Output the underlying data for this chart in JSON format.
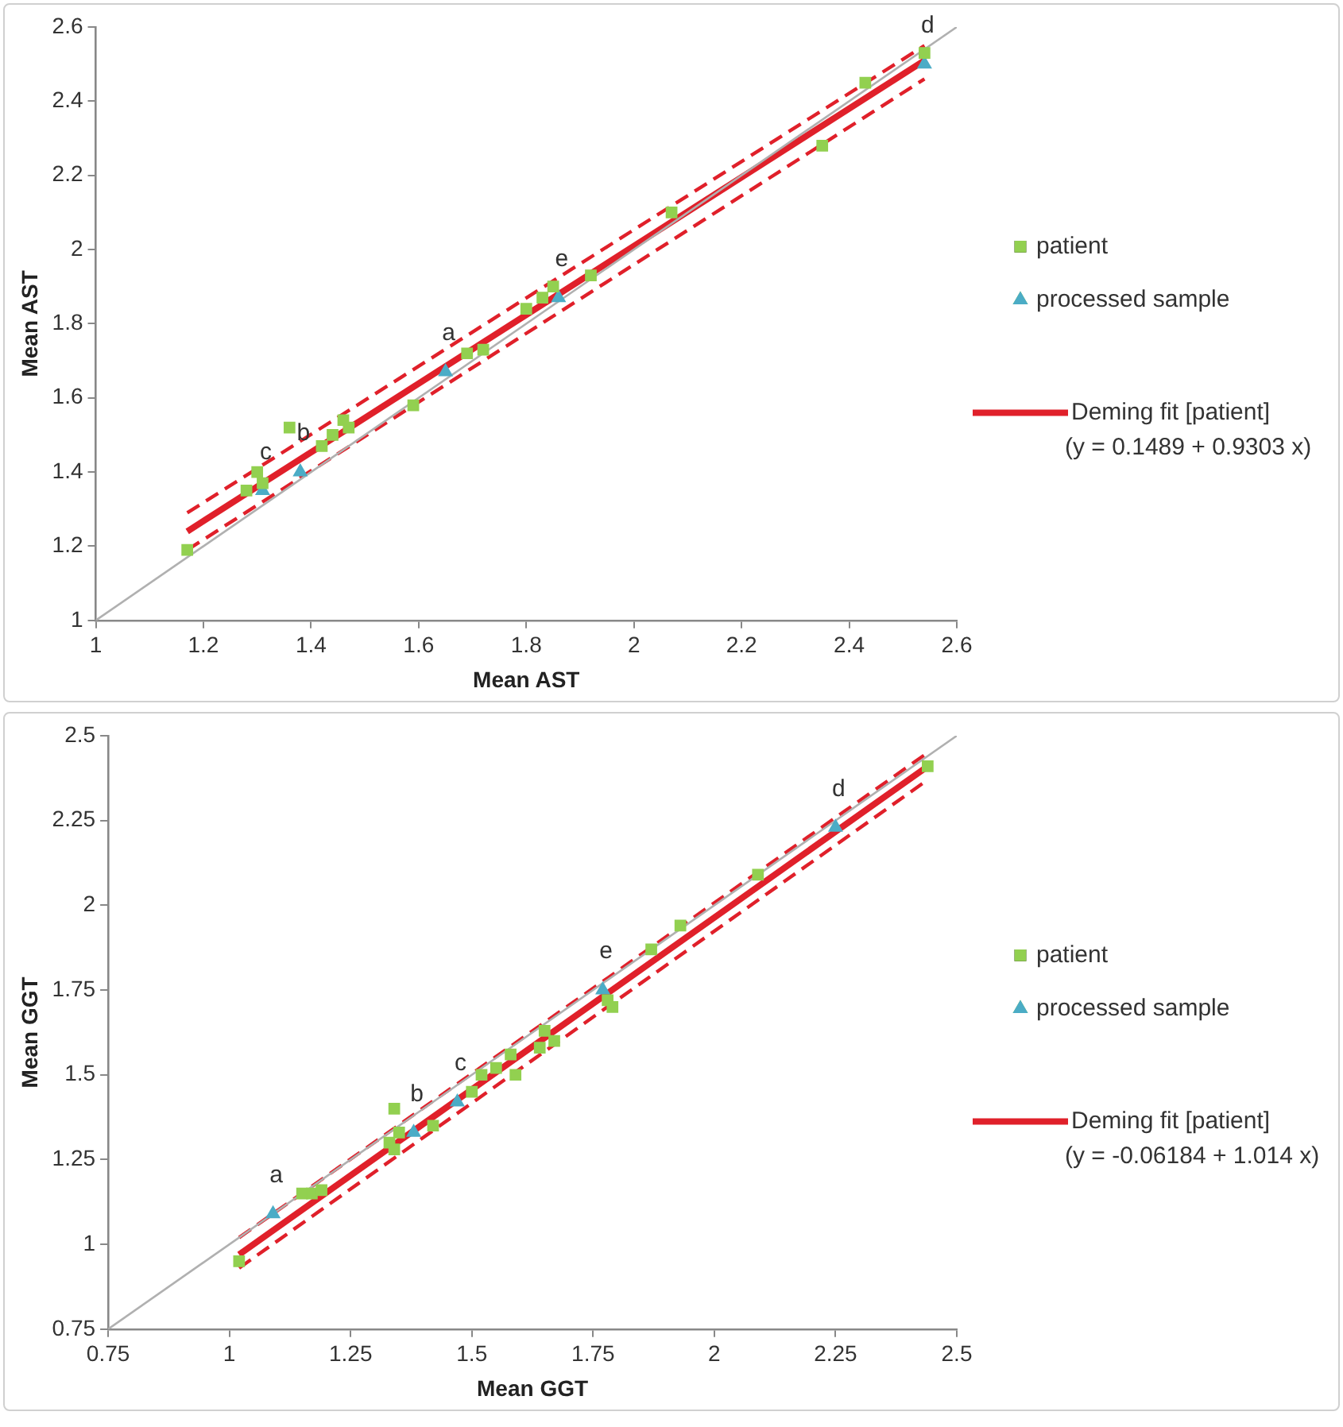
{
  "chart_data": [
    {
      "type": "scatter",
      "xlabel": "Mean AST",
      "ylabel": "Mean AST",
      "xlim": [
        1,
        2.6
      ],
      "xticks": [
        1,
        1.2,
        1.4,
        1.6,
        1.8,
        2,
        2.2,
        2.4,
        2.6
      ],
      "ylim": [
        1,
        2.6
      ],
      "yticks": [
        1,
        1.2,
        1.4,
        1.6,
        1.8,
        2,
        2.2,
        2.4,
        2.6
      ],
      "grid": false,
      "legend": "right",
      "annotations": [
        {
          "text": "a",
          "x": 1.65,
          "y": 1.67
        },
        {
          "text": "b",
          "x": 1.38,
          "y": 1.4
        },
        {
          "text": "c",
          "x": 1.31,
          "y": 1.35
        },
        {
          "text": "d",
          "x": 2.54,
          "y": 2.5
        },
        {
          "text": "e",
          "x": 1.86,
          "y": 1.87
        },
        "(y = 0.1489 + 0.9303 x)"
      ],
      "series": [
        {
          "type": "line",
          "color": "#b0b0b0",
          "x": [
            1,
            2.6
          ],
          "values": [
            1,
            2.6
          ],
          "marker": "none",
          "line_style": "solid"
        },
        {
          "type": "line",
          "color": "#e0202a",
          "x": [
            1.17,
            2.54
          ],
          "values": [
            1.29,
            2.55
          ],
          "marker": "none",
          "line_style": "dashed"
        },
        {
          "type": "line",
          "color": "#e0202a",
          "x": [
            1.17,
            2.54
          ],
          "values": [
            1.19,
            2.46
          ],
          "marker": "none",
          "line_style": "dashed"
        },
        {
          "type": "scatter",
          "name": "patient",
          "color": "#92d050",
          "marker": "square",
          "x": [
            1.17,
            1.28,
            1.3,
            1.31,
            1.36,
            1.42,
            1.44,
            1.46,
            1.47,
            1.59,
            1.69,
            1.72,
            1.8,
            1.83,
            1.85,
            1.92,
            2.07,
            2.35,
            2.43,
            2.54
          ],
          "values": [
            1.19,
            1.35,
            1.4,
            1.37,
            1.52,
            1.47,
            1.5,
            1.54,
            1.52,
            1.58,
            1.72,
            1.73,
            1.84,
            1.87,
            1.9,
            1.93,
            2.1,
            2.28,
            2.45,
            2.53
          ]
        },
        {
          "type": "scatter",
          "name": "processed sample",
          "color": "#4bacc6",
          "marker": "triangle",
          "x": [
            1.31,
            1.38,
            1.65,
            1.86,
            2.54
          ],
          "values": [
            1.35,
            1.4,
            1.67,
            1.87,
            2.5
          ]
        },
        {
          "type": "line",
          "name": "Deming fit [patient]",
          "color": "#e0202a",
          "x": [
            1.17,
            2.54
          ],
          "values": [
            1.24,
            2.51
          ],
          "marker": "none",
          "line_style": "solid"
        }
      ]
    },
    {
      "type": "scatter",
      "xlabel": "Mean GGT",
      "ylabel": "Mean GGT",
      "xlim": [
        0.75,
        2.5
      ],
      "xticks": [
        0.75,
        1,
        1.25,
        1.5,
        1.75,
        2,
        2.25,
        2.5
      ],
      "ylim": [
        0.75,
        2.5
      ],
      "yticks": [
        0.75,
        1,
        1.25,
        1.5,
        1.75,
        2,
        2.25,
        2.5
      ],
      "grid": false,
      "legend": "right",
      "annotations": [
        {
          "text": "a",
          "x": 1.09,
          "y": 1.09
        },
        {
          "text": "b",
          "x": 1.38,
          "y": 1.33
        },
        {
          "text": "c",
          "x": 1.47,
          "y": 1.42
        },
        {
          "text": "d",
          "x": 2.25,
          "y": 2.23
        },
        {
          "text": "e",
          "x": 1.77,
          "y": 1.75
        },
        "(y = -0.06184 + 1.014 x)"
      ],
      "series": [
        {
          "type": "line",
          "color": "#b0b0b0",
          "x": [
            0.75,
            2.5
          ],
          "values": [
            0.75,
            2.5
          ],
          "marker": "none",
          "line_style": "solid"
        },
        {
          "type": "line",
          "color": "#e0202a",
          "x": [
            1.02,
            2.44
          ],
          "values": [
            1.02,
            2.45
          ],
          "marker": "none",
          "line_style": "dashed"
        },
        {
          "type": "line",
          "color": "#e0202a",
          "x": [
            1.02,
            2.44
          ],
          "values": [
            0.93,
            2.37
          ],
          "marker": "none",
          "line_style": "dashed"
        },
        {
          "type": "scatter",
          "name": "patient",
          "color": "#92d050",
          "marker": "square",
          "x": [
            1.02,
            1.15,
            1.17,
            1.19,
            1.33,
            1.34,
            1.34,
            1.35,
            1.42,
            1.5,
            1.52,
            1.55,
            1.58,
            1.59,
            1.64,
            1.65,
            1.67,
            1.78,
            1.79,
            1.87,
            1.93,
            2.09,
            2.44
          ],
          "values": [
            0.95,
            1.15,
            1.15,
            1.16,
            1.3,
            1.4,
            1.28,
            1.33,
            1.35,
            1.45,
            1.5,
            1.52,
            1.56,
            1.5,
            1.58,
            1.63,
            1.6,
            1.72,
            1.7,
            1.87,
            1.94,
            2.09,
            2.41
          ]
        },
        {
          "type": "scatter",
          "name": "processed sample",
          "color": "#4bacc6",
          "marker": "triangle",
          "x": [
            1.09,
            1.38,
            1.47,
            1.77,
            2.25
          ],
          "values": [
            1.09,
            1.33,
            1.42,
            1.75,
            2.23
          ]
        },
        {
          "type": "line",
          "name": "Deming fit [patient]",
          "color": "#e0202a",
          "x": [
            1.02,
            2.44
          ],
          "values": [
            0.97,
            2.41
          ],
          "marker": "none",
          "line_style": "solid"
        }
      ]
    }
  ]
}
